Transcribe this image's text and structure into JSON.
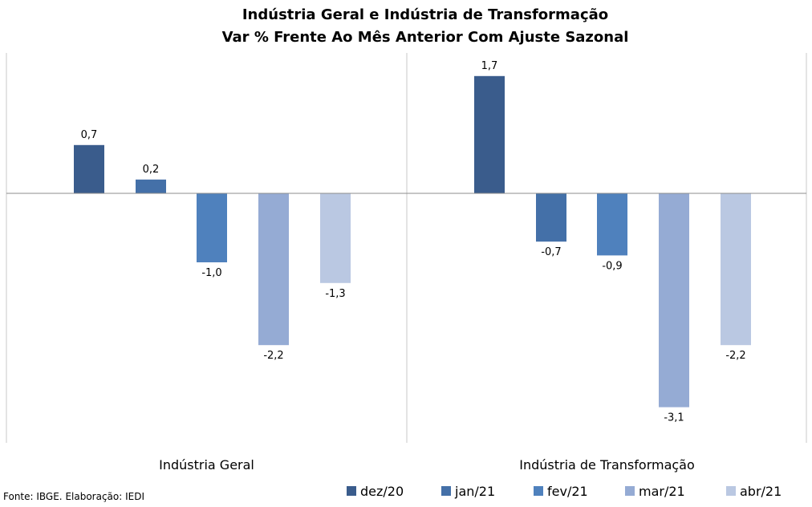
{
  "chart_data": {
    "type": "bar",
    "title_lines": [
      "Indústria Geral e Indústria de Transformação",
      "Var % Frente Ao Mês Anterior Com Ajuste Sazonal"
    ],
    "categories": [
      "Indústria Geral",
      "Indústria de Transformação"
    ],
    "series": [
      {
        "name": "dez/20",
        "color": "#3a5c8c",
        "values": [
          0.7,
          1.7
        ],
        "labels": [
          "0,7",
          "1,7"
        ]
      },
      {
        "name": "jan/21",
        "color": "#4470a8",
        "values": [
          0.2,
          -0.7
        ],
        "labels": [
          "0,2",
          "-0,7"
        ]
      },
      {
        "name": "fev/21",
        "color": "#4f81bd",
        "values": [
          -1.0,
          -0.9
        ],
        "labels": [
          "-1,0",
          "-0,9"
        ]
      },
      {
        "name": "mar/21",
        "color": "#95abd4",
        "values": [
          -2.2,
          -3.1
        ],
        "labels": [
          "-2,2",
          "-3,1"
        ]
      },
      {
        "name": "abr/21",
        "color": "#bac8e2",
        "values": [
          -1.3,
          -2.2
        ],
        "labels": [
          "-1,3",
          "-2,2"
        ]
      }
    ],
    "ylim": [
      -3.6,
      2.0
    ],
    "grid": false,
    "legend_position": "bottom-right"
  },
  "source_note": "Fonte: IBGE. Elaboração: IEDI"
}
